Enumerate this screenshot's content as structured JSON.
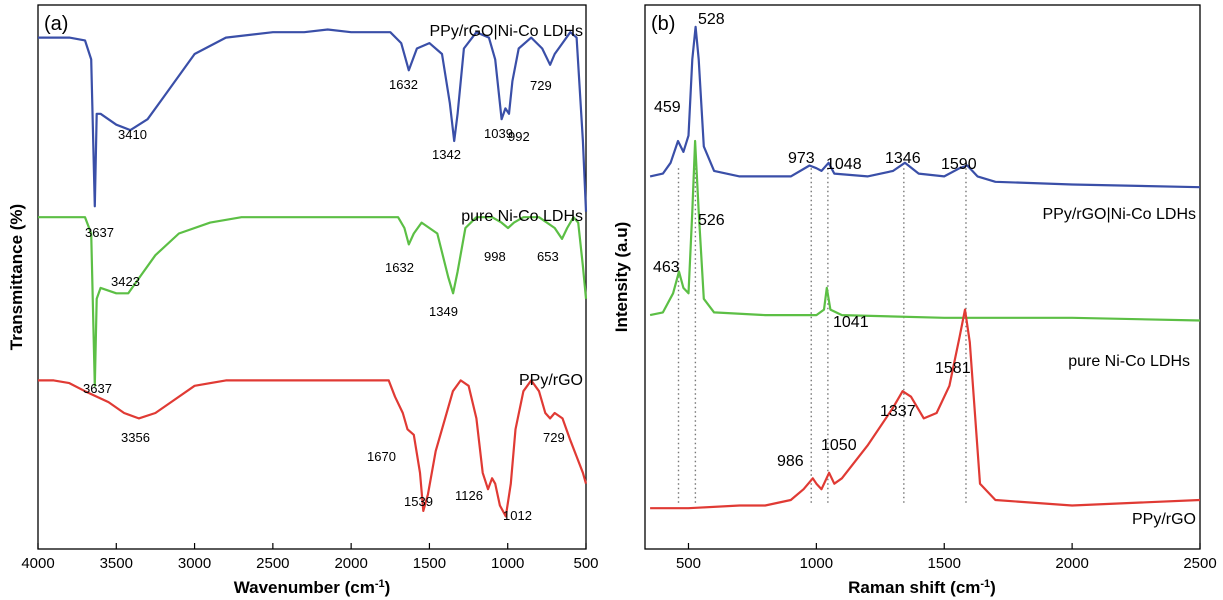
{
  "colors": {
    "blue": "#3a4fa8",
    "green": "#5cbf45",
    "red": "#e03a34",
    "guide": "#777777"
  },
  "chart_data": [
    {
      "type": "line",
      "panel_label": "(a)",
      "xlabel_main": "Wavenumber (cm",
      "xlabel_sup": "-1",
      "xlabel_close": ")",
      "ylabel": "Transmittance (%)",
      "xlim": [
        4000,
        500
      ],
      "x_reversed": true,
      "xticks": [
        4000,
        3500,
        3000,
        2500,
        2000,
        1500,
        1000,
        500
      ],
      "ylim": [
        0,
        100
      ],
      "y_ticks_shown": false,
      "series": [
        {
          "name": "PPy/rGO|Ni-Co LDHs",
          "color": "blue",
          "points": [
            [
              4000,
              94
            ],
            [
              3800,
              94
            ],
            [
              3700,
              93.5
            ],
            [
              3660,
              90
            ],
            [
              3637,
              63
            ],
            [
              3625,
              80
            ],
            [
              3600,
              80
            ],
            [
              3500,
              78
            ],
            [
              3410,
              77
            ],
            [
              3300,
              79
            ],
            [
              3200,
              83
            ],
            [
              3000,
              91
            ],
            [
              2800,
              94
            ],
            [
              2500,
              95
            ],
            [
              2300,
              95
            ],
            [
              2150,
              95.5
            ],
            [
              2000,
              95
            ],
            [
              1850,
              95
            ],
            [
              1750,
              95
            ],
            [
              1680,
              93
            ],
            [
              1632,
              88
            ],
            [
              1580,
              92
            ],
            [
              1500,
              93
            ],
            [
              1420,
              91
            ],
            [
              1370,
              82
            ],
            [
              1342,
              75
            ],
            [
              1320,
              80
            ],
            [
              1280,
              92
            ],
            [
              1200,
              95
            ],
            [
              1120,
              94
            ],
            [
              1080,
              90
            ],
            [
              1039,
              79
            ],
            [
              1015,
              81
            ],
            [
              992,
              80
            ],
            [
              970,
              86
            ],
            [
              930,
              92
            ],
            [
              850,
              94
            ],
            [
              780,
              92
            ],
            [
              729,
              89
            ],
            [
              700,
              91
            ],
            [
              650,
              93
            ],
            [
              600,
              95
            ],
            [
              560,
              94
            ],
            [
              520,
              75
            ],
            [
              500,
              62
            ]
          ],
          "peak_labels": [
            "3637",
            "3410",
            "1632",
            "1342",
            "1039",
            "992",
            "729"
          ]
        },
        {
          "name": "pure Ni-Co LDHs",
          "color": "green",
          "points": [
            [
              4000,
              61
            ],
            [
              3700,
              61
            ],
            [
              3660,
              58
            ],
            [
              3637,
              30
            ],
            [
              3625,
              46
            ],
            [
              3600,
              48
            ],
            [
              3500,
              47
            ],
            [
              3423,
              47
            ],
            [
              3350,
              50
            ],
            [
              3250,
              54
            ],
            [
              3100,
              58
            ],
            [
              2900,
              60
            ],
            [
              2700,
              61
            ],
            [
              2000,
              61
            ],
            [
              1700,
              61
            ],
            [
              1660,
              59
            ],
            [
              1632,
              56
            ],
            [
              1600,
              58
            ],
            [
              1550,
              60
            ],
            [
              1450,
              58
            ],
            [
              1380,
              50
            ],
            [
              1349,
              47
            ],
            [
              1320,
              51
            ],
            [
              1270,
              59
            ],
            [
              1200,
              61
            ],
            [
              1100,
              61
            ],
            [
              1040,
              60
            ],
            [
              998,
              59
            ],
            [
              960,
              60
            ],
            [
              900,
              61
            ],
            [
              800,
              61
            ],
            [
              700,
              59
            ],
            [
              653,
              57
            ],
            [
              620,
              59
            ],
            [
              580,
              61
            ],
            [
              550,
              60
            ],
            [
              520,
              52
            ],
            [
              500,
              46
            ]
          ],
          "peak_labels": [
            "3637",
            "3423",
            "1632",
            "1349",
            "998",
            "653"
          ]
        },
        {
          "name": "PPy/rGO",
          "color": "red",
          "points": [
            [
              4000,
              31
            ],
            [
              3900,
              31
            ],
            [
              3800,
              30.5
            ],
            [
              3700,
              29
            ],
            [
              3550,
              27
            ],
            [
              3450,
              25
            ],
            [
              3356,
              24
            ],
            [
              3250,
              25
            ],
            [
              3150,
              27
            ],
            [
              3000,
              30
            ],
            [
              2800,
              31
            ],
            [
              2500,
              31
            ],
            [
              2200,
              31
            ],
            [
              1900,
              31
            ],
            [
              1800,
              31
            ],
            [
              1760,
              31
            ],
            [
              1720,
              28
            ],
            [
              1670,
              25
            ],
            [
              1640,
              22
            ],
            [
              1600,
              21
            ],
            [
              1560,
              14
            ],
            [
              1539,
              7
            ],
            [
              1510,
              10
            ],
            [
              1460,
              18
            ],
            [
              1400,
              24
            ],
            [
              1350,
              29
            ],
            [
              1300,
              31
            ],
            [
              1250,
              30
            ],
            [
              1200,
              24
            ],
            [
              1160,
              14
            ],
            [
              1126,
              11
            ],
            [
              1100,
              13
            ],
            [
              1080,
              12
            ],
            [
              1050,
              8
            ],
            [
              1012,
              6
            ],
            [
              980,
              12
            ],
            [
              950,
              22
            ],
            [
              900,
              29
            ],
            [
              850,
              31
            ],
            [
              800,
              29
            ],
            [
              760,
              25
            ],
            [
              729,
              24
            ],
            [
              700,
              25
            ],
            [
              650,
              24
            ],
            [
              600,
              20
            ],
            [
              560,
              17
            ],
            [
              520,
              14
            ],
            [
              500,
              12
            ]
          ],
          "peak_labels": [
            "3356",
            "1670",
            "1539",
            "1126",
            "1012",
            "729"
          ]
        }
      ]
    },
    {
      "type": "line",
      "panel_label": "(b)",
      "xlabel_main": "Raman shift (cm",
      "xlabel_sup": "-1",
      "xlabel_close": ")",
      "ylabel": "Intensity (a.u)",
      "xlim": [
        330,
        2500
      ],
      "xticks": [
        500,
        1000,
        1500,
        2000,
        2500
      ],
      "ylim": [
        0,
        100
      ],
      "y_ticks_shown": false,
      "guide_lines_at": [
        461,
        527,
        980,
        1045,
        1342,
        1585
      ],
      "series": [
        {
          "name": "PPy/rGO|Ni-Co LDHs",
          "color": "blue",
          "points": [
            [
              350,
              68.5
            ],
            [
              400,
              69
            ],
            [
              430,
              71
            ],
            [
              459,
              75
            ],
            [
              480,
              73
            ],
            [
              500,
              76
            ],
            [
              515,
              90
            ],
            [
              528,
              96
            ],
            [
              540,
              90
            ],
            [
              560,
              74
            ],
            [
              600,
              69.5
            ],
            [
              700,
              68.5
            ],
            [
              800,
              68.5
            ],
            [
              900,
              68.5
            ],
            [
              973,
              70.5
            ],
            [
              1000,
              70
            ],
            [
              1020,
              69.5
            ],
            [
              1048,
              71
            ],
            [
              1070,
              69
            ],
            [
              1200,
              68.5
            ],
            [
              1300,
              69.5
            ],
            [
              1346,
              71
            ],
            [
              1400,
              69
            ],
            [
              1500,
              68.5
            ],
            [
              1560,
              70
            ],
            [
              1590,
              70.5
            ],
            [
              1630,
              68.5
            ],
            [
              1700,
              67.5
            ],
            [
              2000,
              67
            ],
            [
              2500,
              66.5
            ]
          ],
          "peak_labels": [
            "459",
            "528",
            "973",
            "1048",
            "1346",
            "1590"
          ]
        },
        {
          "name": "pure Ni-Co LDHs",
          "color": "green",
          "points": [
            [
              350,
              43
            ],
            [
              400,
              43.5
            ],
            [
              440,
              47
            ],
            [
              463,
              51
            ],
            [
              480,
              48
            ],
            [
              500,
              47
            ],
            [
              515,
              62
            ],
            [
              526,
              75
            ],
            [
              540,
              62
            ],
            [
              560,
              46
            ],
            [
              600,
              43.5
            ],
            [
              800,
              43
            ],
            [
              1000,
              43
            ],
            [
              1030,
              44
            ],
            [
              1041,
              48
            ],
            [
              1055,
              44
            ],
            [
              1100,
              43
            ],
            [
              1500,
              42.5
            ],
            [
              2000,
              42.5
            ],
            [
              2500,
              42
            ]
          ],
          "peak_labels": [
            "463",
            "526",
            "1041"
          ]
        },
        {
          "name": "PPy/rGO",
          "color": "red",
          "points": [
            [
              350,
              7.5
            ],
            [
              500,
              7.5
            ],
            [
              700,
              8
            ],
            [
              800,
              8
            ],
            [
              900,
              9
            ],
            [
              950,
              11
            ],
            [
              986,
              13
            ],
            [
              1000,
              12
            ],
            [
              1020,
              11
            ],
            [
              1050,
              14
            ],
            [
              1070,
              12
            ],
            [
              1100,
              13
            ],
            [
              1200,
              19
            ],
            [
              1300,
              26
            ],
            [
              1337,
              29
            ],
            [
              1370,
              28
            ],
            [
              1420,
              24
            ],
            [
              1470,
              25
            ],
            [
              1520,
              30
            ],
            [
              1560,
              39
            ],
            [
              1581,
              44
            ],
            [
              1600,
              38
            ],
            [
              1640,
              12
            ],
            [
              1700,
              9
            ],
            [
              2000,
              8
            ],
            [
              2500,
              9
            ]
          ],
          "peak_labels": [
            "986",
            "1050",
            "1337",
            "1581"
          ]
        }
      ]
    }
  ]
}
